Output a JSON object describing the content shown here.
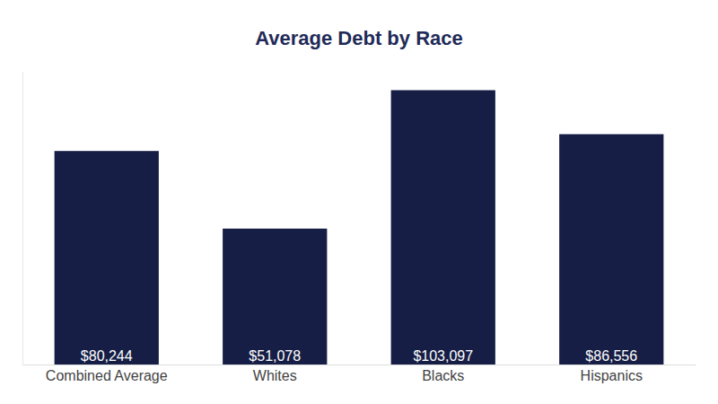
{
  "chart_data": {
    "type": "bar",
    "title": "Average Debt by Race",
    "categories": [
      "Combined Average",
      "Whites",
      "Blacks",
      "Hispanics"
    ],
    "values": [
      80244,
      51078,
      103097,
      86556
    ],
    "value_labels": [
      "$80,244",
      "$51,078",
      "$103,097",
      "$86,556"
    ],
    "color": "#161e45",
    "ylim": [
      0,
      110000
    ],
    "yticks": [],
    "grid": false,
    "data_labels": true,
    "tick_labels": "x"
  }
}
